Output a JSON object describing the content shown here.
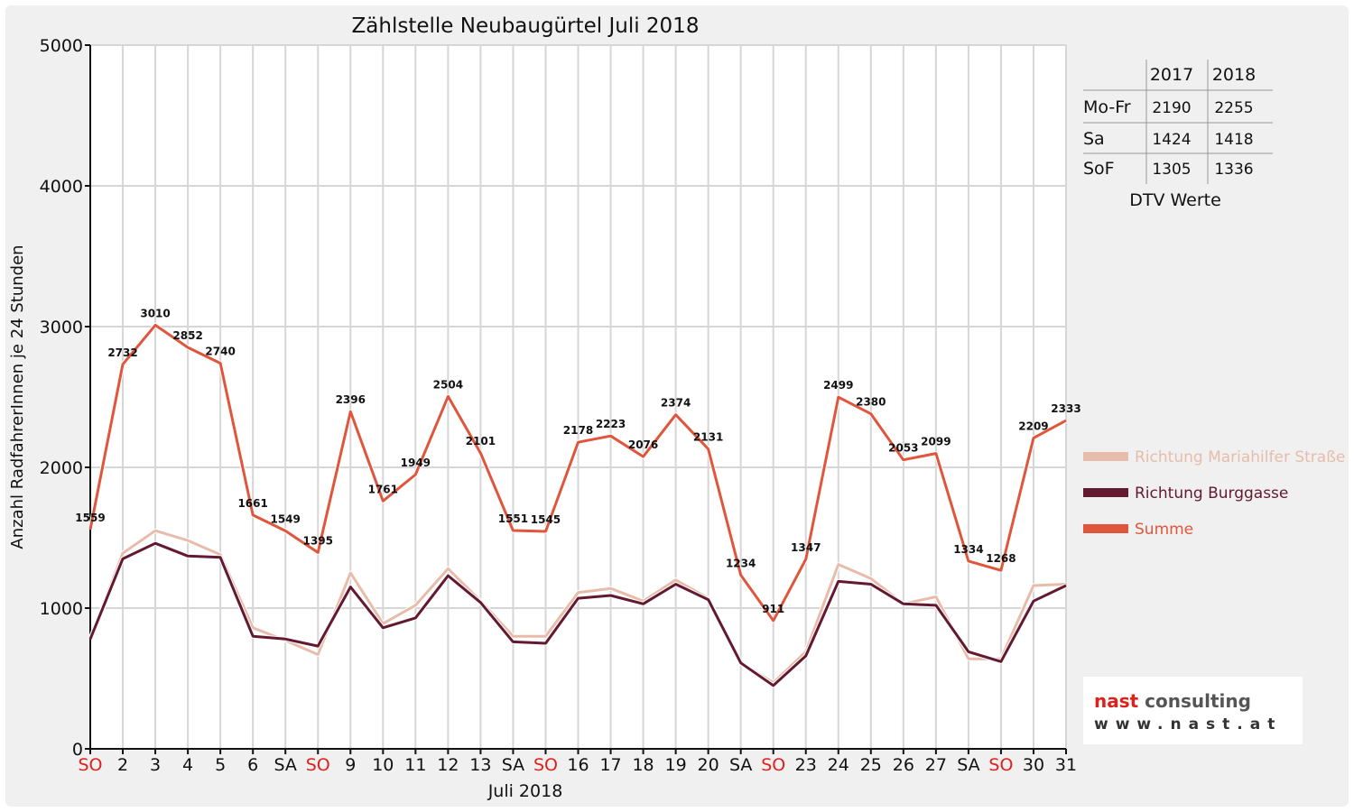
{
  "chart_data": {
    "type": "line",
    "title": "Zählstelle Neubaugürtel Juli 2018",
    "xlabel": "Juli 2018",
    "ylabel": "Anzahl RadfahrerInnen je 24 Stunden",
    "ylim": [
      0,
      5000
    ],
    "yticks": [
      0,
      1000,
      2000,
      3000,
      4000,
      5000
    ],
    "grid": true,
    "legend_position": "right",
    "categories": [
      "SO",
      "2",
      "3",
      "4",
      "5",
      "6",
      "SA",
      "SO",
      "9",
      "10",
      "11",
      "12",
      "13",
      "SA",
      "SO",
      "16",
      "17",
      "18",
      "19",
      "20",
      "SA",
      "SO",
      "23",
      "24",
      "25",
      "26",
      "27",
      "SA",
      "SO",
      "30",
      "31"
    ],
    "highlight_categories": [
      "SO"
    ],
    "series": [
      {
        "name": "Richtung Mariahilfer Straße",
        "color": "#e8bcaa",
        "values": [
          780,
          1390,
          1550,
          1480,
          1380,
          860,
          770,
          670,
          1250,
          890,
          1020,
          1280,
          1050,
          800,
          800,
          1110,
          1140,
          1050,
          1200,
          1070,
          610,
          470,
          690,
          1310,
          1210,
          1030,
          1080,
          640,
          640,
          1160,
          1170
        ]
      },
      {
        "name": "Richtung Burggasse",
        "color": "#631a30",
        "values": [
          780,
          1350,
          1460,
          1370,
          1360,
          800,
          780,
          730,
          1150,
          860,
          930,
          1230,
          1040,
          760,
          750,
          1070,
          1090,
          1030,
          1170,
          1060,
          610,
          450,
          660,
          1190,
          1170,
          1030,
          1020,
          690,
          620,
          1050,
          1160
        ]
      },
      {
        "name": "Summe",
        "color": "#e0563c",
        "values": [
          1559,
          2732,
          3010,
          2852,
          2740,
          1661,
          1549,
          1395,
          2396,
          1761,
          1949,
          2504,
          2101,
          1551,
          1545,
          2178,
          2223,
          2076,
          2374,
          2131,
          1234,
          911,
          1347,
          2499,
          2380,
          2053,
          2099,
          1334,
          1268,
          2209,
          2333
        ],
        "data_labels": [
          "1559",
          "2732",
          "3010",
          "2852",
          "2740",
          "1661",
          "1549",
          "1395",
          "2396",
          "1761",
          "1949",
          "2504",
          "2101",
          "1551",
          "1545",
          "2178",
          "2223",
          "2076",
          "2374",
          "2131",
          "1234",
          "911",
          "1347",
          "2499",
          "2380",
          "2053",
          "2099",
          "1334",
          "1268",
          "2209",
          "2333"
        ]
      }
    ]
  },
  "dtv_table": {
    "caption": "DTV Werte",
    "columns": [
      "2017",
      "2018"
    ],
    "rows": [
      {
        "label": "Mo-Fr",
        "values": [
          "2190",
          "2255"
        ]
      },
      {
        "label": "Sa",
        "values": [
          "1424",
          "1418"
        ]
      },
      {
        "label": "SoF",
        "values": [
          "1305",
          "1336"
        ]
      }
    ]
  },
  "logo": {
    "line1_a": "nast",
    "line1_b": " consulting",
    "line2": "www.nast.at"
  },
  "colors": {
    "sunday_label": "#e0201b",
    "background": "#f0f0f0",
    "grid": "#d6d6d6"
  }
}
